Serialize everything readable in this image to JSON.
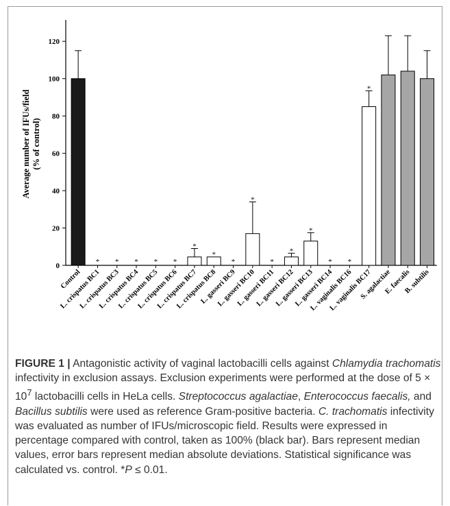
{
  "colors": {
    "control": "#1a1a1a",
    "lactobacilli": "#ffffff",
    "reference": "#a6a6a6"
  },
  "chart_data": {
    "type": "bar",
    "ylabel": "Average number of IFUs/field (% of control)",
    "ylabel_line1": "Average number of IFUs/field",
    "ylabel_line2": "(% of control)",
    "ylim": [
      0,
      130
    ],
    "yticks": [
      0,
      20,
      40,
      60,
      80,
      100,
      120
    ],
    "grid": false,
    "categories": [
      "Control",
      "L. crispatus BC1",
      "L. crispatus BC3",
      "L. crispatus BC4",
      "L. crispatus BC5",
      "L. crispatus BC6",
      "L. crispatus BC7",
      "L. crispatus BC8",
      "L. gasseri BC9",
      "L. gasseri BC10",
      "L. gasseri BC11",
      "L. gasseri BC12",
      "L. gasseri BC13",
      "L. gasseri BC14",
      "L. vaginalis BC16",
      "L. vaginalis BC17",
      "S. agalactiae",
      "E. faecalis",
      "B. subtilis"
    ],
    "values": [
      100,
      0,
      0,
      0,
      0,
      0,
      4.5,
      4.5,
      0,
      17,
      0,
      4.5,
      13,
      0,
      0,
      85,
      102,
      104,
      100
    ],
    "errors": [
      15,
      0,
      0,
      0,
      0,
      0,
      4.5,
      0,
      0,
      17,
      0,
      2,
      4.5,
      0,
      0,
      8.5,
      21,
      19,
      15
    ],
    "groups": [
      "control",
      "lacto",
      "lacto",
      "lacto",
      "lacto",
      "lacto",
      "lacto",
      "lacto",
      "lacto",
      "lacto",
      "lacto",
      "lacto",
      "lacto",
      "lacto",
      "lacto",
      "lacto",
      "reference",
      "reference",
      "reference"
    ],
    "significance": [
      false,
      true,
      true,
      true,
      true,
      true,
      true,
      true,
      true,
      true,
      true,
      true,
      true,
      true,
      true,
      true,
      false,
      false,
      false
    ],
    "sig_symbol": "*"
  },
  "caption": {
    "label": "FIGURE 1 |",
    "t1": " Antagonistic activity of vaginal lactobacilli cells against ",
    "i1": "Chlamydia trachomatis",
    "t2": " infectivity in exclusion assays. Exclusion experiments were performed at the dose of 5 × 10",
    "sup": "7",
    "t3": " lactobacilli cells in HeLa cells. ",
    "i2": "Streptococcus agalactiae",
    "t4": ", ",
    "i3": "Enterococcus faecalis,",
    "t5": " and ",
    "i4": "Bacillus subtilis",
    "t6": " were used as reference Gram-positive bacteria. ",
    "i5": "C. trachomatis",
    "t7": " infectivity was evaluated as number of IFUs/microscopic field. Results were expressed in percentage compared with control, taken as 100% (black bar). Bars represent median values, error bars represent median absolute deviations. Statistical significance was calculated vs. control. *",
    "i6": "P",
    "t8": " ≤ 0.01."
  }
}
